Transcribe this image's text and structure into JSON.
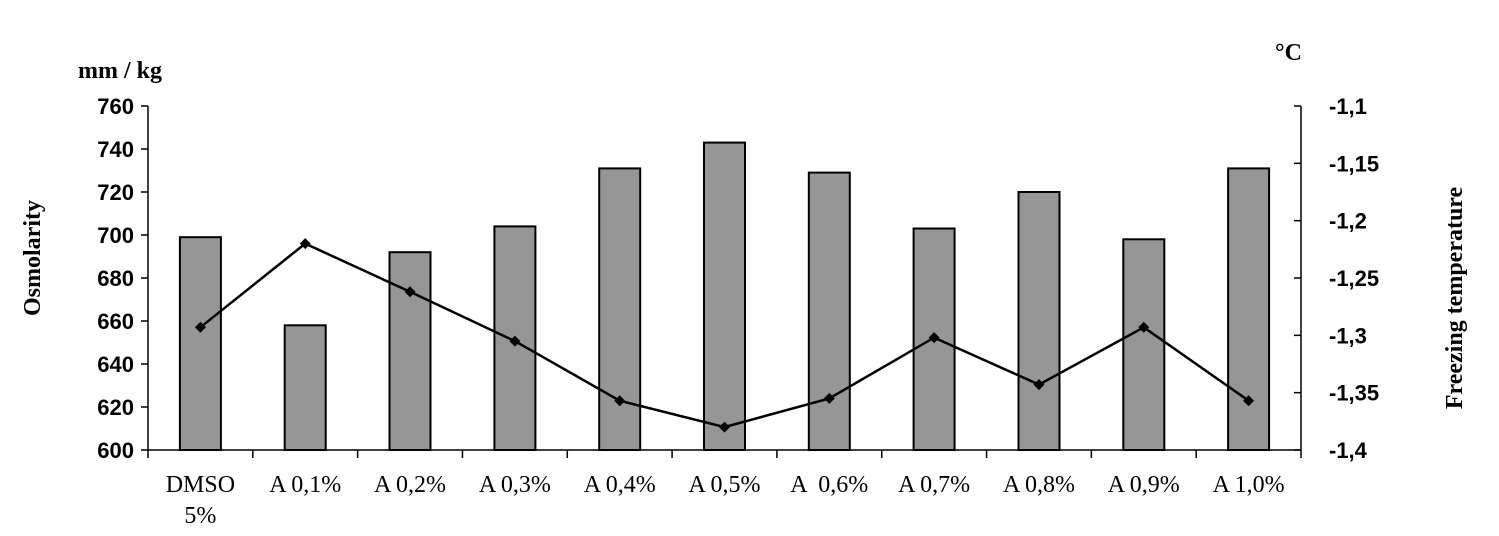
{
  "chart_data": {
    "type": "bar",
    "categories": [
      [
        "DMSO",
        "5%"
      ],
      [
        "A 0,1%"
      ],
      [
        "A 0,2%"
      ],
      [
        "A 0,3%"
      ],
      [
        "A 0,4%"
      ],
      [
        "A 0,5%"
      ],
      [
        "A  0,6%"
      ],
      [
        "A 0,7%"
      ],
      [
        "A 0,8%"
      ],
      [
        "A 0,9%"
      ],
      [
        "A 1,0%"
      ]
    ],
    "left_axis": {
      "unit": "mm / kg",
      "label": "Osmolarity",
      "range": [
        600,
        760
      ],
      "ticks": [
        600,
        620,
        640,
        660,
        680,
        700,
        720,
        740,
        760
      ],
      "tick_labels": [
        "600",
        "620",
        "640",
        "660",
        "680",
        "700",
        "720",
        "740",
        "760"
      ]
    },
    "right_axis": {
      "unit": "°C",
      "label": "Freezing temperature",
      "range": [
        -1.4,
        -1.1
      ],
      "ticks": [
        -1.4,
        -1.35,
        -1.3,
        -1.25,
        -1.2,
        -1.15,
        -1.1
      ],
      "tick_labels": [
        "-1,4",
        "-1,35",
        "-1,3",
        "-1,25",
        "-1,2",
        "-1,15",
        "-1,1"
      ]
    },
    "series": [
      {
        "type": "bar",
        "axis": "left",
        "values": [
          699,
          658,
          692,
          704,
          731,
          743,
          729,
          703,
          720,
          698,
          731
        ]
      },
      {
        "type": "line",
        "axis": "right",
        "values": [
          -1.293,
          -1.22,
          -1.262,
          -1.305,
          -1.357,
          -1.38,
          -1.355,
          -1.302,
          -1.343,
          -1.293,
          -1.357
        ]
      }
    ],
    "grid": false,
    "legend": "none"
  },
  "colors": {
    "bar_fill": "#969696",
    "stroke": "#000000"
  }
}
